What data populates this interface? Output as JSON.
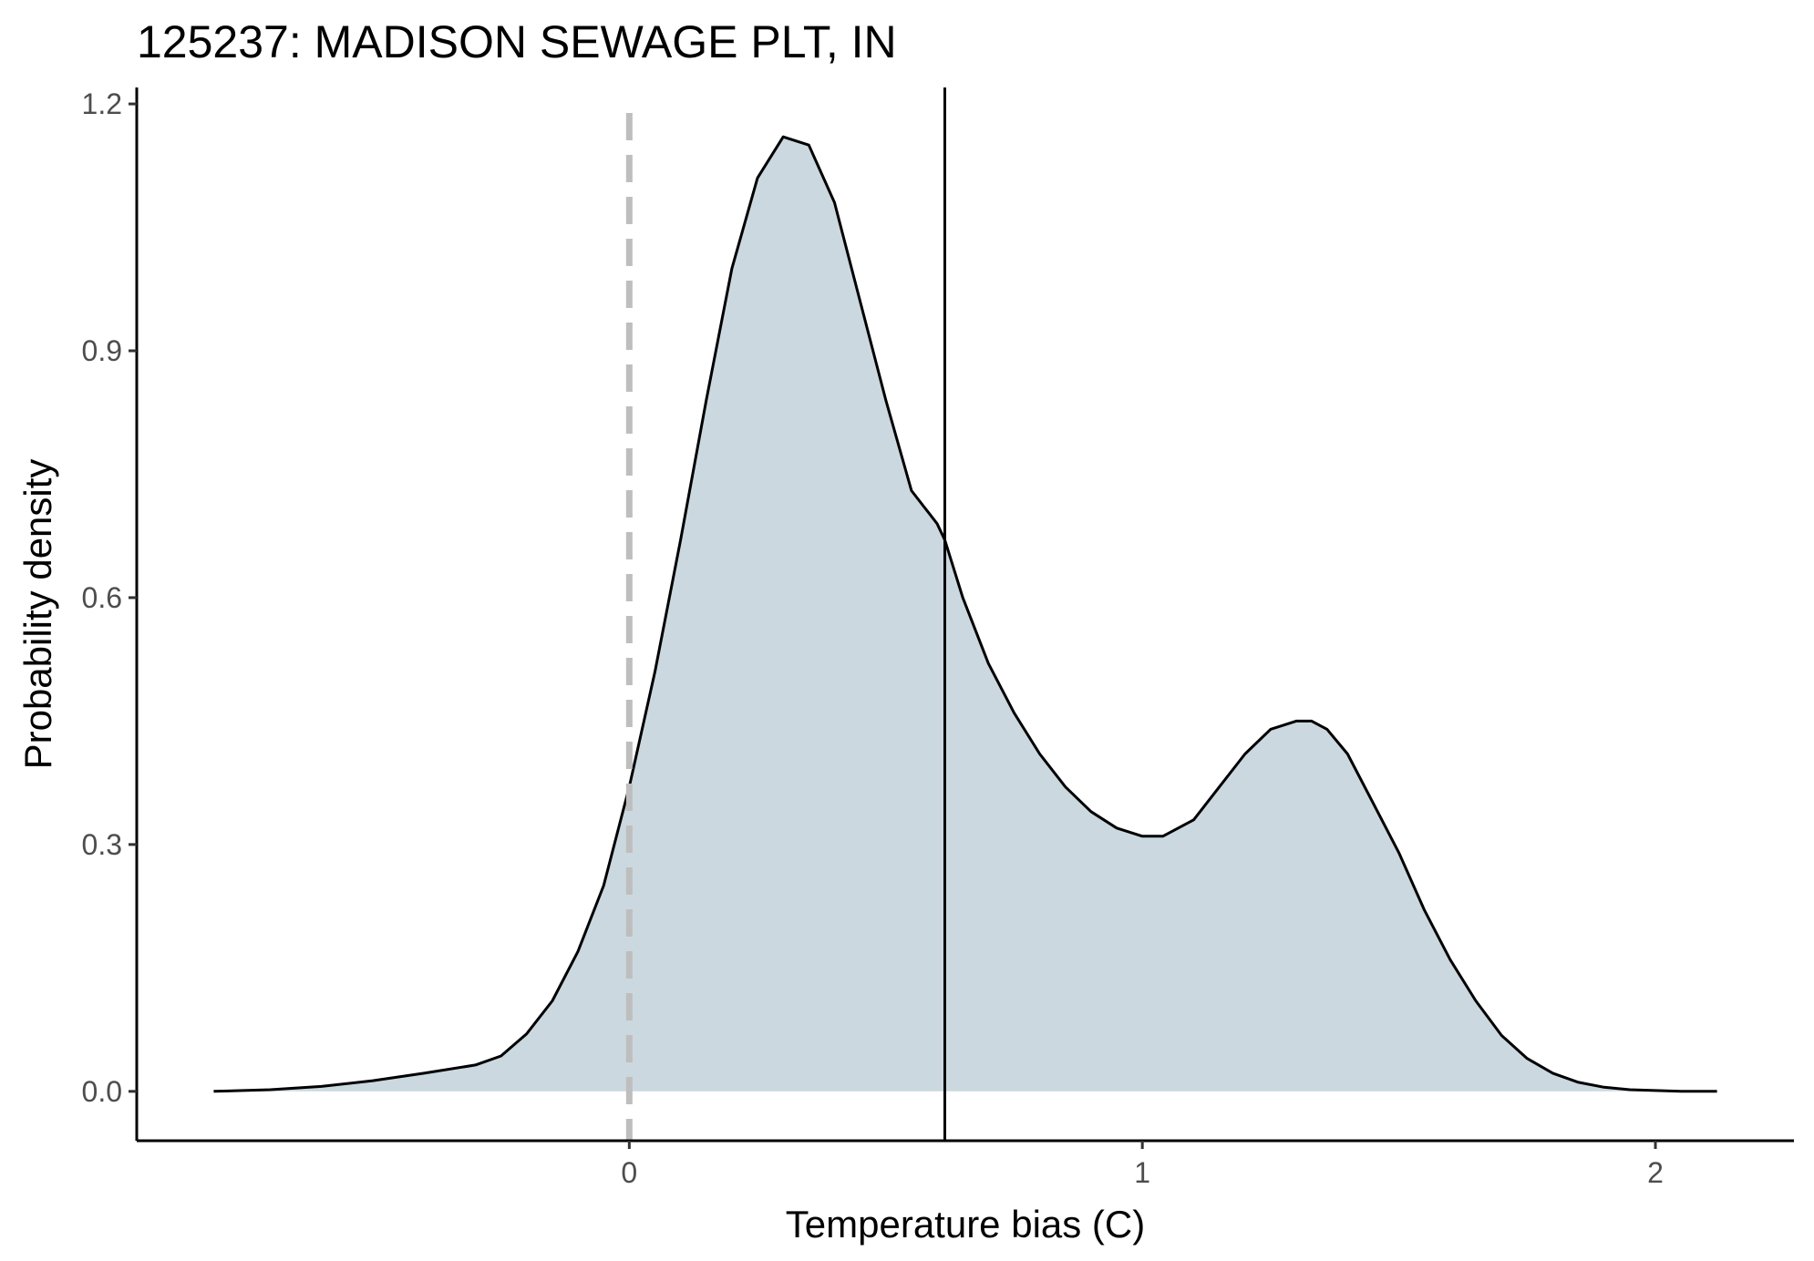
{
  "chart_data": {
    "type": "area",
    "title": "125237: MADISON SEWAGE PLT, IN",
    "xlabel": "Temperature bias (C)",
    "ylabel": "Probability density",
    "xlim": [
      -0.96,
      2.27
    ],
    "ylim": [
      -0.06,
      1.22
    ],
    "x_ticks": [
      0,
      1,
      2
    ],
    "y_ticks": [
      0.0,
      0.3,
      0.6,
      0.9,
      1.2
    ],
    "x_tick_labels": [
      "0",
      "1",
      "2"
    ],
    "y_tick_labels": [
      "0.0",
      "0.3",
      "0.6",
      "0.9",
      "1.2"
    ],
    "grid": false,
    "legend": "none",
    "reference_lines": [
      {
        "x": 0,
        "style": "dashed",
        "color": "#bebebe"
      },
      {
        "x": 0.615,
        "style": "solid",
        "color": "#000000"
      }
    ],
    "series": [
      {
        "fill": "#cbd8df",
        "stroke": "#000000",
        "x": [
          -0.81,
          -0.7,
          -0.6,
          -0.5,
          -0.4,
          -0.3,
          -0.25,
          -0.2,
          -0.15,
          -0.1,
          -0.05,
          0.0,
          0.05,
          0.1,
          0.15,
          0.2,
          0.25,
          0.3,
          0.35,
          0.4,
          0.45,
          0.5,
          0.55,
          0.6,
          0.615,
          0.65,
          0.7,
          0.75,
          0.8,
          0.85,
          0.9,
          0.95,
          1.0,
          1.04,
          1.1,
          1.15,
          1.2,
          1.25,
          1.3,
          1.33,
          1.36,
          1.4,
          1.45,
          1.5,
          1.55,
          1.6,
          1.65,
          1.7,
          1.75,
          1.8,
          1.85,
          1.9,
          1.95,
          2.0,
          2.05,
          2.12
        ],
        "y": [
          0.0,
          0.002,
          0.006,
          0.013,
          0.022,
          0.032,
          0.043,
          0.07,
          0.11,
          0.17,
          0.25,
          0.37,
          0.51,
          0.67,
          0.84,
          1.0,
          1.11,
          1.16,
          1.15,
          1.08,
          0.96,
          0.84,
          0.73,
          0.69,
          0.67,
          0.6,
          0.52,
          0.46,
          0.41,
          0.37,
          0.34,
          0.32,
          0.31,
          0.31,
          0.33,
          0.37,
          0.41,
          0.44,
          0.45,
          0.45,
          0.44,
          0.41,
          0.35,
          0.29,
          0.22,
          0.16,
          0.11,
          0.068,
          0.04,
          0.022,
          0.011,
          0.005,
          0.002,
          0.001,
          0.0,
          0.0
        ]
      }
    ]
  }
}
